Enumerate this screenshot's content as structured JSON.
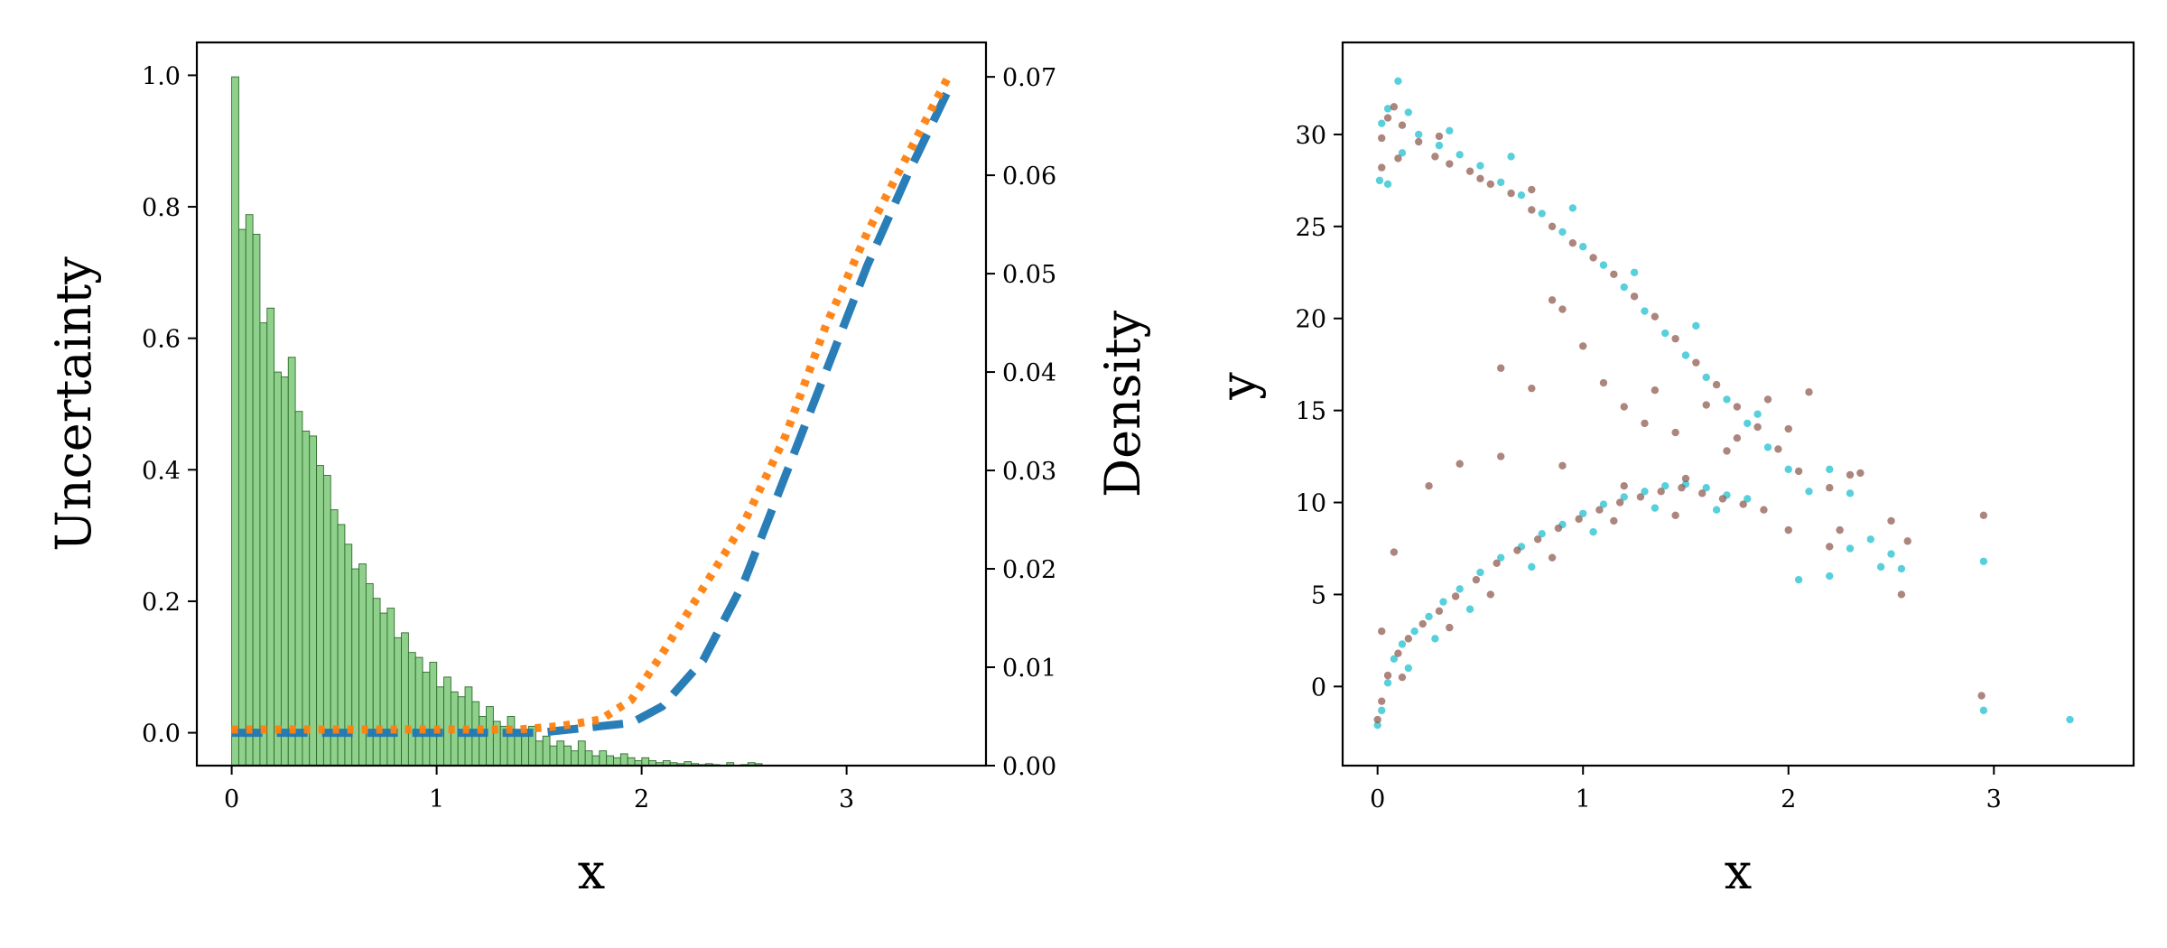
{
  "chart_data": [
    {
      "type": "histogram-line",
      "title": "",
      "xlabel": "x",
      "ylabel": "Uncertainty",
      "y2label": "Density",
      "xlim": [
        -0.17,
        3.68
      ],
      "ylim": [
        -0.05,
        1.05
      ],
      "y2lim": [
        0.0,
        0.0735
      ],
      "xticks": [
        "0",
        "1",
        "2",
        "3"
      ],
      "yticks": [
        "0.0",
        "0.2",
        "0.4",
        "0.6",
        "0.8",
        "1.0"
      ],
      "y2ticks": [
        "0.00",
        "0.01",
        "0.02",
        "0.03",
        "0.04",
        "0.05",
        "0.06",
        "0.07"
      ],
      "histogram": {
        "name": "Density of x",
        "color": "#8fd18c",
        "edge_color": "#2d6b2a",
        "bin_start": 0.0,
        "bin_width": 0.0345,
        "heights": [
          0.07,
          0.0545,
          0.056,
          0.054,
          0.045,
          0.0465,
          0.04,
          0.0395,
          0.0415,
          0.036,
          0.034,
          0.0335,
          0.0305,
          0.0295,
          0.026,
          0.0245,
          0.0225,
          0.02,
          0.0205,
          0.0185,
          0.017,
          0.0155,
          0.016,
          0.013,
          0.0135,
          0.0115,
          0.011,
          0.0095,
          0.0105,
          0.008,
          0.009,
          0.0075,
          0.007,
          0.008,
          0.0065,
          0.005,
          0.006,
          0.0045,
          0.004,
          0.005,
          0.0035,
          0.003,
          0.004,
          0.0025,
          0.003,
          0.002,
          0.0025,
          0.002,
          0.0015,
          0.0025,
          0.0015,
          0.001,
          0.0015,
          0.001,
          0.0008,
          0.0012,
          0.0008,
          0.0005,
          0.0008,
          0.0005,
          0.0003,
          0.0005,
          0.0003,
          0.0002,
          0.0004,
          0.0002,
          0.0001,
          0.0002,
          0.0001,
          0.0,
          0.0003,
          0.0,
          0.0001,
          0.0003,
          0.0002,
          0.0,
          0.0,
          0.0,
          0.0,
          0.0,
          0.0,
          0.0,
          0.0,
          0.0,
          0.0,
          0.0,
          0.0,
          0.0,
          0.0,
          0.0,
          0.0,
          0.0,
          0.0,
          0.0,
          0.0,
          0.0,
          0.0,
          0.0
        ]
      },
      "series": [
        {
          "name": "dashed (blue)",
          "color": "#1f77b4",
          "style": "dashed",
          "x": [
            0.0,
            0.5,
            1.0,
            1.5,
            1.8,
            1.95,
            2.1,
            2.3,
            2.5,
            2.7,
            2.9,
            3.1,
            3.3,
            3.5
          ],
          "y": [
            0.0,
            0.0,
            0.0,
            0.0,
            0.01,
            0.015,
            0.04,
            0.11,
            0.23,
            0.39,
            0.55,
            0.71,
            0.85,
            0.98
          ]
        },
        {
          "name": "dotted (orange)",
          "color": "#ff7f0e",
          "style": "dotted",
          "x": [
            0.0,
            0.5,
            1.0,
            1.4,
            1.6,
            1.8,
            1.95,
            2.1,
            2.3,
            2.5,
            2.7,
            2.9,
            3.1,
            3.3,
            3.5
          ],
          "y": [
            0.005,
            0.005,
            0.005,
            0.005,
            0.01,
            0.02,
            0.05,
            0.12,
            0.22,
            0.32,
            0.45,
            0.62,
            0.76,
            0.88,
            1.0
          ]
        }
      ]
    },
    {
      "type": "scatter",
      "title": "",
      "xlabel": "x",
      "ylabel": "y",
      "xlim": [
        -0.17,
        3.68
      ],
      "ylim": [
        -4.3,
        35.0
      ],
      "xticks": [
        "0",
        "1",
        "2",
        "3"
      ],
      "yticks": [
        "0",
        "5",
        "10",
        "15",
        "20",
        "25",
        "30"
      ],
      "series": [
        {
          "name": "cyan points",
          "color": "#17becf",
          "points": [
            [
              0.02,
              30.6
            ],
            [
              0.05,
              31.4
            ],
            [
              0.1,
              32.9
            ],
            [
              0.15,
              31.2
            ],
            [
              0.2,
              30.0
            ],
            [
              0.3,
              29.4
            ],
            [
              0.4,
              28.9
            ],
            [
              0.5,
              28.3
            ],
            [
              0.6,
              27.4
            ],
            [
              0.7,
              26.7
            ],
            [
              0.8,
              25.7
            ],
            [
              0.9,
              24.7
            ],
            [
              1.0,
              23.9
            ],
            [
              1.1,
              22.9
            ],
            [
              1.2,
              21.7
            ],
            [
              1.3,
              20.4
            ],
            [
              1.4,
              19.2
            ],
            [
              1.5,
              18.0
            ],
            [
              1.6,
              16.8
            ],
            [
              1.7,
              15.6
            ],
            [
              1.8,
              14.3
            ],
            [
              1.9,
              13.0
            ],
            [
              2.0,
              11.8
            ],
            [
              2.1,
              10.6
            ],
            [
              0.01,
              27.5
            ],
            [
              0.05,
              27.3
            ],
            [
              0.12,
              29.0
            ],
            [
              0.35,
              30.2
            ],
            [
              0.65,
              28.8
            ],
            [
              0.95,
              26.0
            ],
            [
              1.25,
              22.5
            ],
            [
              1.55,
              19.6
            ],
            [
              1.85,
              14.8
            ],
            [
              2.2,
              11.8
            ],
            [
              2.3,
              10.5
            ],
            [
              2.4,
              8.0
            ],
            [
              2.5,
              7.2
            ],
            [
              0.0,
              -2.1
            ],
            [
              0.02,
              -1.3
            ],
            [
              0.05,
              0.2
            ],
            [
              0.08,
              1.5
            ],
            [
              0.12,
              2.3
            ],
            [
              0.18,
              3.0
            ],
            [
              0.25,
              3.8
            ],
            [
              0.32,
              4.6
            ],
            [
              0.4,
              5.3
            ],
            [
              0.5,
              6.2
            ],
            [
              0.6,
              7.0
            ],
            [
              0.7,
              7.6
            ],
            [
              0.8,
              8.3
            ],
            [
              0.9,
              8.8
            ],
            [
              1.0,
              9.4
            ],
            [
              1.1,
              9.9
            ],
            [
              1.2,
              10.3
            ],
            [
              1.3,
              10.6
            ],
            [
              1.4,
              10.9
            ],
            [
              1.5,
              11.0
            ],
            [
              1.6,
              10.8
            ],
            [
              1.7,
              10.4
            ],
            [
              1.8,
              10.2
            ],
            [
              2.05,
              5.8
            ],
            [
              2.2,
              6.0
            ],
            [
              2.3,
              7.5
            ],
            [
              2.45,
              6.5
            ],
            [
              2.55,
              6.4
            ],
            [
              2.95,
              6.8
            ],
            [
              2.95,
              -1.3
            ],
            [
              3.37,
              -1.8
            ],
            [
              0.15,
              1.0
            ],
            [
              0.28,
              2.6
            ],
            [
              0.45,
              4.2
            ],
            [
              0.75,
              6.5
            ],
            [
              1.05,
              8.4
            ],
            [
              1.35,
              9.7
            ],
            [
              1.65,
              9.6
            ]
          ]
        },
        {
          "name": "brown points",
          "color": "#8c564b",
          "points": [
            [
              0.02,
              29.8
            ],
            [
              0.05,
              30.9
            ],
            [
              0.08,
              31.5
            ],
            [
              0.12,
              30.5
            ],
            [
              0.2,
              29.6
            ],
            [
              0.28,
              28.8
            ],
            [
              0.35,
              28.4
            ],
            [
              0.45,
              28.0
            ],
            [
              0.55,
              27.3
            ],
            [
              0.65,
              26.8
            ],
            [
              0.75,
              25.9
            ],
            [
              0.85,
              25.0
            ],
            [
              0.95,
              24.1
            ],
            [
              1.05,
              23.3
            ],
            [
              1.15,
              22.4
            ],
            [
              1.25,
              21.2
            ],
            [
              1.35,
              20.1
            ],
            [
              1.45,
              18.9
            ],
            [
              1.55,
              17.6
            ],
            [
              1.65,
              16.4
            ],
            [
              1.75,
              15.2
            ],
            [
              1.85,
              14.1
            ],
            [
              1.95,
              12.9
            ],
            [
              2.05,
              11.7
            ],
            [
              0.02,
              28.2
            ],
            [
              0.1,
              28.7
            ],
            [
              0.3,
              29.9
            ],
            [
              0.5,
              27.6
            ],
            [
              0.75,
              27.0
            ],
            [
              0.85,
              21.0
            ],
            [
              0.9,
              20.5
            ],
            [
              1.0,
              18.5
            ],
            [
              1.1,
              16.5
            ],
            [
              1.2,
              15.2
            ],
            [
              1.3,
              14.3
            ],
            [
              1.35,
              16.1
            ],
            [
              1.45,
              13.8
            ],
            [
              1.6,
              15.3
            ],
            [
              1.7,
              12.8
            ],
            [
              1.75,
              13.5
            ],
            [
              1.9,
              15.6
            ],
            [
              2.0,
              14.0
            ],
            [
              2.1,
              16.0
            ],
            [
              0.6,
              17.3
            ],
            [
              0.75,
              16.2
            ],
            [
              0.4,
              12.1
            ],
            [
              0.25,
              10.9
            ],
            [
              0.6,
              12.5
            ],
            [
              0.9,
              12.0
            ],
            [
              2.2,
              10.8
            ],
            [
              2.3,
              11.5
            ],
            [
              2.35,
              11.6
            ],
            [
              2.5,
              9.0
            ],
            [
              2.55,
              5.0
            ],
            [
              2.58,
              7.9
            ],
            [
              2.95,
              9.3
            ],
            [
              2.94,
              -0.5
            ],
            [
              0.0,
              -1.8
            ],
            [
              0.02,
              -0.8
            ],
            [
              0.05,
              0.6
            ],
            [
              0.1,
              1.8
            ],
            [
              0.15,
              2.6
            ],
            [
              0.22,
              3.4
            ],
            [
              0.3,
              4.1
            ],
            [
              0.38,
              4.9
            ],
            [
              0.48,
              5.8
            ],
            [
              0.58,
              6.7
            ],
            [
              0.68,
              7.4
            ],
            [
              0.78,
              8.0
            ],
            [
              0.88,
              8.6
            ],
            [
              0.98,
              9.1
            ],
            [
              1.08,
              9.6
            ],
            [
              1.18,
              10.0
            ],
            [
              1.28,
              10.3
            ],
            [
              1.38,
              10.6
            ],
            [
              1.48,
              10.8
            ],
            [
              1.58,
              10.5
            ],
            [
              1.68,
              10.2
            ],
            [
              1.78,
              9.9
            ],
            [
              1.88,
              9.6
            ],
            [
              2.0,
              8.5
            ],
            [
              2.2,
              7.6
            ],
            [
              2.25,
              8.5
            ],
            [
              0.08,
              7.3
            ],
            [
              0.02,
              3.0
            ],
            [
              0.12,
              0.5
            ],
            [
              0.35,
              3.2
            ],
            [
              0.55,
              5.0
            ],
            [
              0.85,
              7.0
            ],
            [
              1.15,
              9.0
            ],
            [
              1.45,
              9.3
            ],
            [
              1.2,
              10.9
            ],
            [
              1.5,
              11.3
            ]
          ]
        }
      ]
    }
  ]
}
